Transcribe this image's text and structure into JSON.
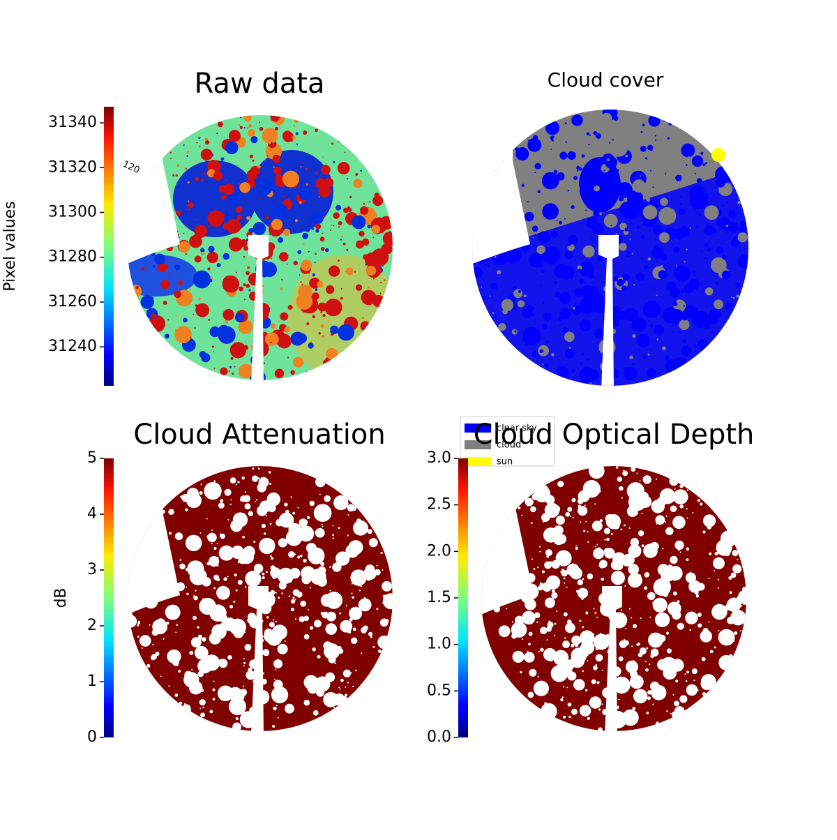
{
  "chart_data": [
    {
      "type": "image",
      "title": "Raw data",
      "colormap": "jet",
      "colorbar_label": "Pixel values",
      "ylim": [
        31222.6,
        31347.2
      ],
      "yticks": [
        31240,
        31260,
        31280,
        31300,
        31320,
        31340
      ],
      "annotations": [
        "120"
      ]
    },
    {
      "type": "image",
      "title": "Cloud cover",
      "series": [
        {
          "name": "clear sky",
          "color": "#0000ff"
        },
        {
          "name": "cloud",
          "color": "#808080"
        },
        {
          "name": "sun",
          "color": "#ffff00"
        }
      ]
    },
    {
      "type": "image",
      "title": "Cloud Attenuation",
      "colormap": "jet",
      "colorbar_label": "dB",
      "ylim": [
        0,
        5
      ],
      "yticks": [
        0,
        1,
        2,
        3,
        4,
        5
      ]
    },
    {
      "type": "image",
      "title": "Cloud Optical Depth",
      "colormap": "jet",
      "ylim": [
        0,
        3
      ],
      "yticks": [
        {
          "value": 0,
          "label": "0.0"
        },
        0.5,
        {
          "value": 1,
          "label": "1.0"
        },
        1.5,
        {
          "value": 2,
          "label": "2.0"
        },
        2.5,
        {
          "value": 3,
          "label": "3.0"
        }
      ]
    }
  ]
}
